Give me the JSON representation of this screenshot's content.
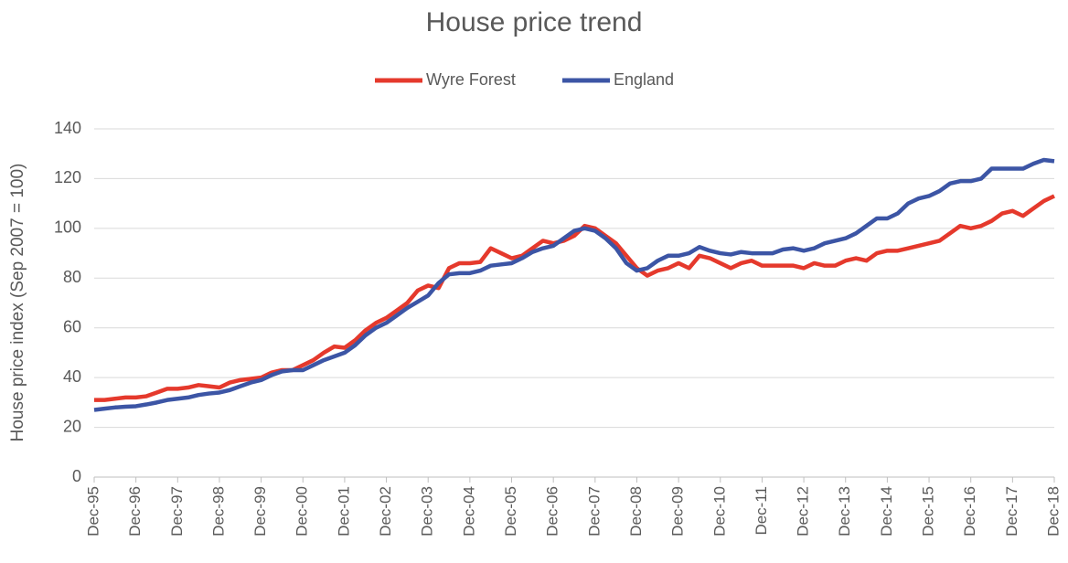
{
  "chart_data": {
    "type": "line",
    "title": "House price trend",
    "y_label": "House price index (Sep 2007 = 100)",
    "categories": [
      "Dec-95",
      null,
      null,
      null,
      "Dec-96",
      null,
      null,
      null,
      "Dec-97",
      null,
      null,
      null,
      "Dec-98",
      null,
      null,
      null,
      "Dec-99",
      null,
      null,
      null,
      "Dec-00",
      null,
      null,
      null,
      "Dec-01",
      null,
      null,
      null,
      "Dec-02",
      null,
      null,
      null,
      "Dec-03",
      null,
      null,
      null,
      "Dec-04",
      null,
      null,
      null,
      "Dec-05",
      null,
      null,
      null,
      "Dec-06",
      null,
      null,
      null,
      "Dec-07",
      null,
      null,
      null,
      "Dec-08",
      null,
      null,
      null,
      "Dec-09",
      null,
      null,
      null,
      "Dec-10",
      null,
      null,
      null,
      "Dec-11",
      null,
      null,
      null,
      "Dec-12",
      null,
      null,
      null,
      "Dec-13",
      null,
      null,
      null,
      "Dec-14",
      null,
      null,
      null,
      "Dec-15",
      null,
      null,
      null,
      "Dec-16",
      null,
      null,
      null,
      "Dec-17",
      null,
      null,
      null,
      "Dec-18"
    ],
    "series": [
      {
        "name": "Wyre Forest",
        "color": "#e5392c",
        "values": [
          31,
          31,
          31.5,
          32,
          32,
          32.5,
          34,
          35.5,
          35.5,
          36,
          37,
          36.5,
          36,
          38,
          39,
          39.5,
          40,
          42,
          43,
          43,
          45,
          47,
          50,
          52.5,
          52,
          55,
          59,
          62,
          64,
          67,
          70,
          75,
          77,
          76,
          84,
          86,
          86,
          86.5,
          92,
          90,
          88,
          89,
          92,
          95,
          94,
          95,
          97,
          101,
          100,
          97,
          94,
          89,
          84,
          81,
          83,
          84,
          86,
          84,
          89,
          88,
          86,
          84,
          86,
          87,
          85,
          85,
          85,
          85,
          84,
          86,
          85,
          85,
          87,
          88,
          87,
          90,
          91,
          91,
          92,
          93,
          94,
          95,
          98,
          101,
          100,
          101,
          103,
          106,
          107,
          105,
          108,
          111,
          113
        ]
      },
      {
        "name": "England",
        "color": "#3c55a5",
        "values": [
          27,
          27.5,
          28,
          28.3,
          28.5,
          29.2,
          30,
          31,
          31.5,
          32,
          33,
          33.6,
          34,
          35,
          36.5,
          38,
          39,
          41,
          42.5,
          43,
          43,
          45,
          47,
          48.5,
          50,
          53,
          57,
          60,
          62,
          65,
          68,
          70.5,
          73,
          78,
          81.5,
          82,
          82,
          83,
          85,
          85.5,
          86,
          88,
          90.5,
          92,
          93,
          96,
          99,
          100,
          99,
          96,
          92,
          86,
          83,
          84,
          87,
          89,
          89,
          90,
          92.5,
          91,
          90,
          89.5,
          90.5,
          90,
          90,
          90,
          91.5,
          92,
          91,
          92,
          94,
          95,
          96,
          98,
          101,
          104,
          104,
          106,
          110,
          112,
          113,
          115,
          118,
          119,
          119,
          120,
          124,
          124,
          124,
          124,
          126,
          127.5,
          127
        ]
      }
    ],
    "ylim": [
      0,
      140
    ],
    "yticks": [
      0,
      20,
      40,
      60,
      80,
      100,
      120,
      140
    ],
    "grid": true,
    "legend": "top"
  }
}
